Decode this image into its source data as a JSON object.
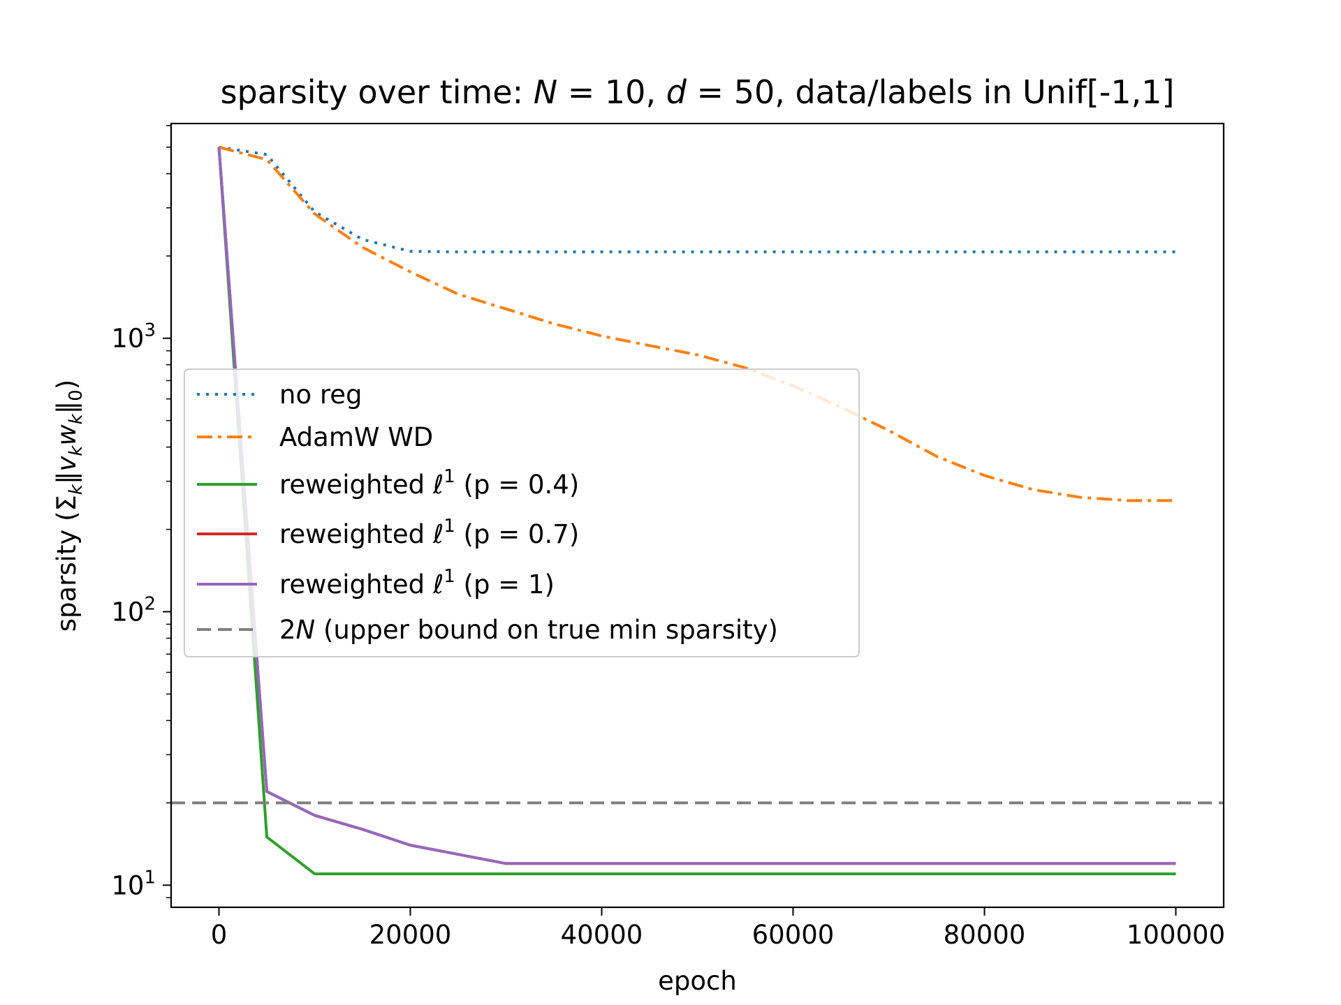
{
  "chart_data": {
    "type": "line",
    "title_parts": [
      {
        "text": "sparsity over time: ",
        "italic": false
      },
      {
        "text": "N",
        "italic": true
      },
      {
        "text": " = 10, ",
        "italic": false
      },
      {
        "text": "d",
        "italic": true
      },
      {
        "text": " = 50, data/labels in Unif[-1,1]",
        "italic": false
      }
    ],
    "xlabel": "epoch",
    "ylabel": "sparsity (Σ_k‖v_k w_k‖_0)",
    "ylabel_parts": [
      {
        "text": "sparsity (Σ",
        "sub": false,
        "italic": false
      },
      {
        "text": "k",
        "sub": true,
        "italic": true
      },
      {
        "text": "‖",
        "sub": false,
        "italic": false
      },
      {
        "text": "v",
        "sub": false,
        "italic": true
      },
      {
        "text": "k",
        "sub": true,
        "italic": true
      },
      {
        "text": "w",
        "sub": false,
        "italic": true
      },
      {
        "text": "k",
        "sub": true,
        "italic": true
      },
      {
        "text": "‖",
        "sub": false,
        "italic": false
      },
      {
        "text": "0",
        "sub": true,
        "italic": false
      },
      {
        "text": ")",
        "sub": false,
        "italic": false
      }
    ],
    "xlim": [
      -5000,
      105000
    ],
    "ylim": [
      8.3,
      6100
    ],
    "y_scale": "log",
    "x_ticks": [
      0,
      20000,
      40000,
      60000,
      80000,
      100000
    ],
    "x_tick_labels": [
      "0",
      "20000",
      "40000",
      "60000",
      "80000",
      "100000"
    ],
    "y_ticks": [
      10,
      100,
      1000
    ],
    "y_tick_labels": [
      {
        "base": "10",
        "exp": "1"
      },
      {
        "base": "10",
        "exp": "2"
      },
      {
        "base": "10",
        "exp": "3"
      }
    ],
    "legend_position": "center-left",
    "series": [
      {
        "name": "no reg",
        "color": "#1f77b4",
        "dash": "dotted",
        "x": [
          0,
          5000,
          10000,
          15000,
          20000,
          25000,
          30000,
          40000,
          50000,
          60000,
          70000,
          80000,
          90000,
          100000
        ],
        "y": [
          5000,
          4700,
          2900,
          2300,
          2080,
          2070,
          2070,
          2070,
          2070,
          2070,
          2070,
          2070,
          2070,
          2070
        ]
      },
      {
        "name": "AdamW WD",
        "color": "#ff7f0e",
        "dash": "dashdot",
        "x": [
          0,
          5000,
          10000,
          15000,
          20000,
          25000,
          30000,
          35000,
          40000,
          45000,
          50000,
          55000,
          60000,
          65000,
          70000,
          75000,
          80000,
          85000,
          90000,
          95000,
          100000
        ],
        "y": [
          5000,
          4500,
          2850,
          2150,
          1750,
          1450,
          1280,
          1130,
          1020,
          940,
          870,
          780,
          670,
          560,
          460,
          370,
          315,
          280,
          262,
          255,
          255
        ]
      },
      {
        "name": "reweighted ℓ¹ (p = 0.4)",
        "label_prefix": "reweighted ",
        "label_symbol": "ℓ",
        "label_sup": "1",
        "label_suffix": " (p = 0.4)",
        "color": "#2ca02c",
        "dash": "solid",
        "x": [
          0,
          5000,
          10000,
          20000,
          30000,
          40000,
          50000,
          60000,
          70000,
          80000,
          90000,
          100000
        ],
        "y": [
          5000,
          15,
          11,
          11,
          11,
          11,
          11,
          11,
          11,
          11,
          11,
          11
        ]
      },
      {
        "name": "reweighted ℓ¹ (p = 0.7)",
        "label_prefix": "reweighted ",
        "label_symbol": "ℓ",
        "label_sup": "1",
        "label_suffix": " (p = 0.7)",
        "color": "#d62728",
        "dash": "solid",
        "x": [
          0,
          5000,
          10000,
          15000,
          20000,
          30000,
          40000,
          50000,
          60000,
          70000,
          80000,
          90000,
          100000
        ],
        "y": [
          5000,
          22,
          18,
          16,
          14,
          12,
          12,
          12,
          12,
          12,
          12,
          12,
          12
        ]
      },
      {
        "name": "reweighted ℓ¹ (p = 1)",
        "label_prefix": "reweighted ",
        "label_symbol": "ℓ",
        "label_sup": "1",
        "label_suffix": " (p = 1)",
        "color": "#9467bd",
        "dash": "solid",
        "x": [
          0,
          5000,
          10000,
          15000,
          20000,
          30000,
          40000,
          50000,
          60000,
          70000,
          80000,
          90000,
          100000
        ],
        "y": [
          5000,
          22,
          18,
          16,
          14,
          12,
          12,
          12,
          12,
          12,
          12,
          12,
          12
        ]
      },
      {
        "name": "2N (upper bound on true min sparsity)",
        "label_italic": "2N",
        "label_rest": " (upper bound on true min sparsity)",
        "color": "#7f7f7f",
        "dash": "dashed",
        "hline": 20
      }
    ]
  }
}
